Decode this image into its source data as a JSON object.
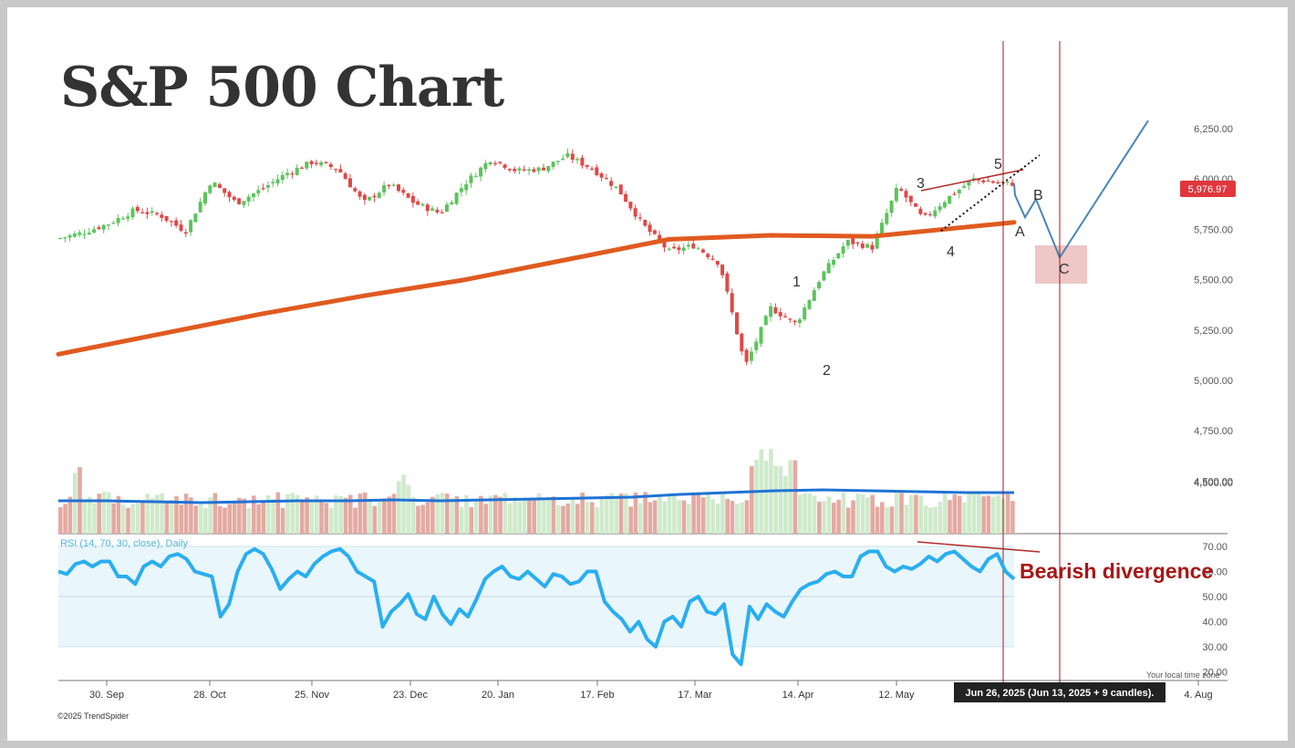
{
  "title": "S&P 500 Chart",
  "copyright": "©2025 TrendSpider",
  "timezone_note": "Your local time zone",
  "tooltip": "Jun 26, 2025 (Jun 13, 2025 + 9 candles).",
  "price_tag": "5,976.97",
  "rsi_label": "RSI (14, 70, 30, close), Daily",
  "divergence_label": "Bearish divergence",
  "wave_labels": [
    "1",
    "2",
    "3",
    "4",
    "5",
    "A",
    "B",
    "C"
  ],
  "colors": {
    "up": "#5cc45c",
    "down": "#e04848",
    "ma_price": "#e05a20",
    "ma_volume": "#1f72d6",
    "rsi": "#29aef0",
    "projection": "#4a86b4",
    "marker_line": "#a01818",
    "target_zone": "#e8b4b4"
  },
  "chart_data": {
    "type": "candlestick",
    "title": "S&P 500 Chart",
    "price_axis": {
      "ticks": [
        "6,250.00",
        "6,000.00",
        "5,750.00",
        "5,500.00",
        "5,250.00",
        "5,000.00",
        "4,750.00",
        "4,500.00"
      ],
      "ylim": [
        4380,
        6440
      ]
    },
    "x_ticks": [
      "30. Sep",
      "28. Oct",
      "25. Nov",
      "23. Dec",
      "20. Jan",
      "17. Feb",
      "17. Mar",
      "14. Apr",
      "12. May",
      "4. Aug"
    ],
    "last_price": 5976.97,
    "price_series": [
      [
        "2024-09-23",
        5705
      ],
      [
        "2024-09-30",
        5735
      ],
      [
        "2024-10-07",
        5780
      ],
      [
        "2024-10-14",
        5845
      ],
      [
        "2024-10-21",
        5820
      ],
      [
        "2024-10-28",
        5740
      ],
      [
        "2024-11-04",
        5990
      ],
      [
        "2024-11-11",
        5880
      ],
      [
        "2024-11-18",
        5950
      ],
      [
        "2024-11-25",
        6030
      ],
      [
        "2024-12-02",
        6085
      ],
      [
        "2024-12-09",
        6050
      ],
      [
        "2024-12-16",
        5880
      ],
      [
        "2024-12-23",
        5975
      ],
      [
        "2024-12-30",
        5880
      ],
      [
        "2025-01-06",
        5830
      ],
      [
        "2025-01-13",
        5980
      ],
      [
        "2025-01-20",
        6100
      ],
      [
        "2025-01-27",
        6040
      ],
      [
        "2025-02-03",
        6050
      ],
      [
        "2025-02-10",
        6115
      ],
      [
        "2025-02-17",
        6050
      ],
      [
        "2025-02-24",
        5950
      ],
      [
        "2025-03-03",
        5770
      ],
      [
        "2025-03-10",
        5640
      ],
      [
        "2025-03-17",
        5670
      ],
      [
        "2025-03-24",
        5580
      ],
      [
        "2025-03-31",
        5070
      ],
      [
        "2025-04-07",
        5360
      ],
      [
        "2025-04-14",
        5280
      ],
      [
        "2025-04-21",
        5520
      ],
      [
        "2025-04-28",
        5690
      ],
      [
        "2025-05-05",
        5660
      ],
      [
        "2025-05-12",
        5960
      ],
      [
        "2025-05-19",
        5800
      ],
      [
        "2025-05-26",
        5910
      ],
      [
        "2025-06-02",
        6000
      ],
      [
        "2025-06-09",
        5977
      ]
    ],
    "moving_average": [
      [
        "2024-09-23",
        5130
      ],
      [
        "2024-10-21",
        5230
      ],
      [
        "2024-11-18",
        5330
      ],
      [
        "2024-12-16",
        5420
      ],
      [
        "2025-01-13",
        5500
      ],
      [
        "2025-02-10",
        5600
      ],
      [
        "2025-03-10",
        5700
      ],
      [
        "2025-04-07",
        5720
      ],
      [
        "2025-05-05",
        5715
      ],
      [
        "2025-06-13",
        5785
      ]
    ],
    "wave_points": {
      "1": 5470,
      "2": 5075,
      "3": 5935,
      "4": 5740,
      "5": 6040,
      "A": 5760,
      "B": 5900,
      "C": 5610
    },
    "projection": [
      5977,
      5920,
      5810,
      5900,
      5610,
      6290
    ],
    "target_zone": [
      5510,
      5690
    ],
    "volume_axis": {
      "ticks": [
        "4,500.00"
      ]
    },
    "rsi": {
      "ylim": [
        20,
        75
      ],
      "ticks": [
        "70.00",
        "60.00",
        "50.00",
        "40.00",
        "30.00",
        "20.00"
      ],
      "overbought": 70,
      "oversold": 30,
      "values": [
        60,
        59,
        63,
        64,
        62,
        64,
        64,
        58,
        58,
        55,
        62,
        64,
        62,
        66,
        67,
        65,
        60,
        59,
        58,
        42,
        47,
        60,
        67,
        69,
        67,
        61,
        53,
        57,
        60,
        58,
        63,
        66,
        68,
        69,
        66,
        60,
        58,
        56,
        38,
        44,
        47,
        51,
        43,
        41,
        50,
        43,
        39,
        45,
        42,
        49,
        57,
        60,
        62,
        58,
        57,
        60,
        57,
        54,
        59,
        58,
        55,
        56,
        60,
        60,
        48,
        44,
        41,
        36,
        40,
        33,
        30,
        40,
        42,
        38,
        48,
        50,
        44,
        43,
        47,
        27,
        23,
        46,
        41,
        47,
        44,
        42,
        48,
        53,
        55,
        56,
        59,
        60,
        58,
        58,
        66,
        68,
        68,
        62,
        60,
        62,
        61,
        63,
        66,
        64,
        67,
        68,
        65,
        62,
        60,
        65,
        67,
        60,
        57
      ]
    },
    "volume_ma_level": 4440
  }
}
